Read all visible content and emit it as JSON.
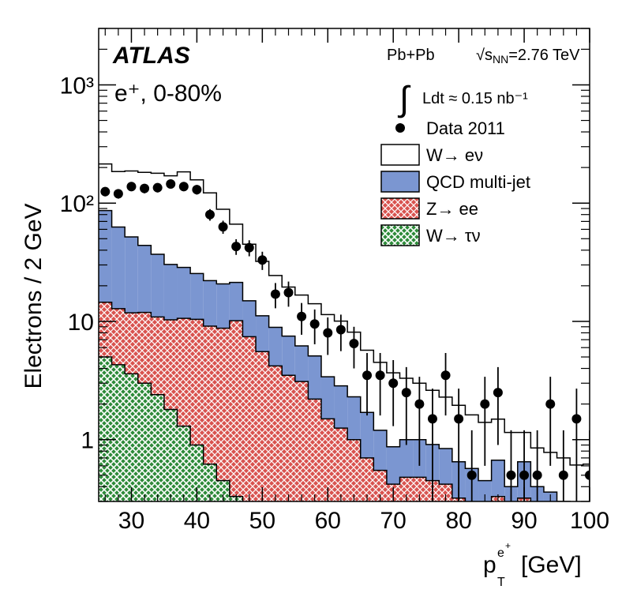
{
  "chart_data": {
    "type": "histogram",
    "experiment": "ATLAS",
    "channel_label": "e⁺, 0-80%",
    "collision": "Pb+Pb",
    "sqrt_s_nn": "2.76 TeV",
    "luminosity": "≈ 0.15 nb⁻¹",
    "xlabel": "p_T^{e+} [GeV]",
    "ylabel": "Electrons / 2 GeV",
    "xlim": [
      25,
      100
    ],
    "ylim": [
      0.3,
      3000
    ],
    "yscale": "log",
    "x_ticks": [
      30,
      40,
      50,
      60,
      70,
      80,
      90,
      100
    ],
    "y_ticks": [
      {
        "value": 1,
        "label": "1"
      },
      {
        "value": 10,
        "label": "10"
      },
      {
        "value": 100,
        "label": "10²"
      },
      {
        "value": 1000,
        "label": "10³"
      }
    ],
    "bin_edges": [
      25,
      27,
      29,
      31,
      33,
      35,
      37,
      39,
      41,
      43,
      45,
      47,
      49,
      51,
      53,
      55,
      57,
      59,
      61,
      63,
      65,
      67,
      69,
      71,
      73,
      75,
      77,
      79,
      81,
      83,
      85,
      87,
      89,
      91,
      93,
      95,
      97,
      99,
      100
    ],
    "stack": [
      {
        "name": "W→ τν",
        "color": "#2e8b3a",
        "values": [
          5.0,
          4.3,
          3.6,
          3.0,
          2.4,
          1.8,
          1.3,
          0.9,
          0.62,
          0.45,
          0.33,
          0.22,
          0.15,
          0,
          0,
          0,
          0,
          0,
          0,
          0,
          0,
          0,
          0,
          0,
          0,
          0,
          0,
          0,
          0,
          0,
          0,
          0,
          0,
          0,
          0,
          0,
          0,
          0
        ]
      },
      {
        "name": "Z→ ee",
        "color": "#d9534f",
        "values": [
          9.5,
          8.5,
          8.2,
          8.9,
          8.5,
          8.5,
          9.3,
          9.5,
          8.5,
          8.3,
          9.8,
          7.2,
          5.4,
          4.2,
          3.5,
          3.1,
          2.2,
          1.5,
          1.25,
          1.0,
          0.7,
          0.55,
          0.42,
          0.48,
          0.48,
          0.45,
          0.42,
          0.32,
          0.28,
          0.22,
          0.33,
          0.2,
          0.32,
          0.2,
          0.18,
          0.15,
          0.12,
          0.1
        ]
      },
      {
        "name": "QCD multi-jet",
        "color": "#7b96d1",
        "values": [
          72,
          50,
          40,
          32,
          26,
          20,
          18,
          15,
          13,
          12,
          11.2,
          7.5,
          5.6,
          4.7,
          4.0,
          3.1,
          2.9,
          1.9,
          1.6,
          1.3,
          1.0,
          0.65,
          0.45,
          0.52,
          0.52,
          0.46,
          0.42,
          0.33,
          0.29,
          0.23,
          0.34,
          0.2,
          0.33,
          0.2,
          0.18,
          0.15,
          0.12,
          0.1
        ]
      },
      {
        "name": "W→ eν",
        "color": "#ffffff",
        "values": [
          128,
          122,
          135,
          138,
          142,
          140,
          155,
          132,
          100,
          68,
          45,
          30,
          21,
          15.5,
          12,
          10.5,
          9,
          8,
          7.2,
          5.8,
          4.0,
          3.3,
          2.8,
          2.3,
          2.0,
          1.7,
          1.45,
          1.3,
          1.05,
          0.95,
          0.82,
          0.75,
          0.5,
          0.45,
          0.42,
          0.4,
          0.37,
          0.42
        ]
      }
    ],
    "data_points": {
      "name": "Data 2011",
      "x": [
        26,
        28,
        30,
        32,
        34,
        36,
        38,
        40,
        42,
        44,
        46,
        48,
        50,
        52,
        54,
        56,
        58,
        60,
        62,
        64,
        66,
        68,
        70,
        72,
        74,
        76,
        78,
        80,
        82,
        84,
        86,
        88,
        90,
        92,
        94,
        96,
        98,
        100
      ],
      "y": [
        125,
        120,
        138,
        133,
        135,
        145,
        138,
        130,
        80,
        63,
        43,
        42,
        33,
        17,
        17.5,
        11,
        9.5,
        8,
        8.5,
        6.5,
        3.5,
        3.5,
        3,
        2.5,
        2,
        1.5,
        3.5,
        1.5,
        0.5,
        2,
        2.5,
        0.5,
        0.5,
        0.5,
        2,
        0.5,
        1.5,
        0.5
      ],
      "err": [
        11,
        11,
        12,
        12,
        12,
        12,
        12,
        12,
        9,
        8,
        6.5,
        6.5,
        5.8,
        4.1,
        4.2,
        3.3,
        3.1,
        2.8,
        2.9,
        2.5,
        1.9,
        1.9,
        1.7,
        1.6,
        1.4,
        1.2,
        1.9,
        1.2,
        0.7,
        1.4,
        1.6,
        0.7,
        0.7,
        0.7,
        1.4,
        0.7,
        1.2,
        0.7
      ]
    },
    "legend": [
      {
        "label": "Data 2011",
        "kind": "marker"
      },
      {
        "label": "W→ eν",
        "kind": "box",
        "color": "#ffffff"
      },
      {
        "label": "QCD multi-jet",
        "kind": "box",
        "color": "#7b96d1"
      },
      {
        "label": "Z→ ee",
        "kind": "hatch",
        "color": "#d9534f"
      },
      {
        "label": "W→ τν",
        "kind": "hatch",
        "color": "#2e8b3a"
      }
    ]
  }
}
